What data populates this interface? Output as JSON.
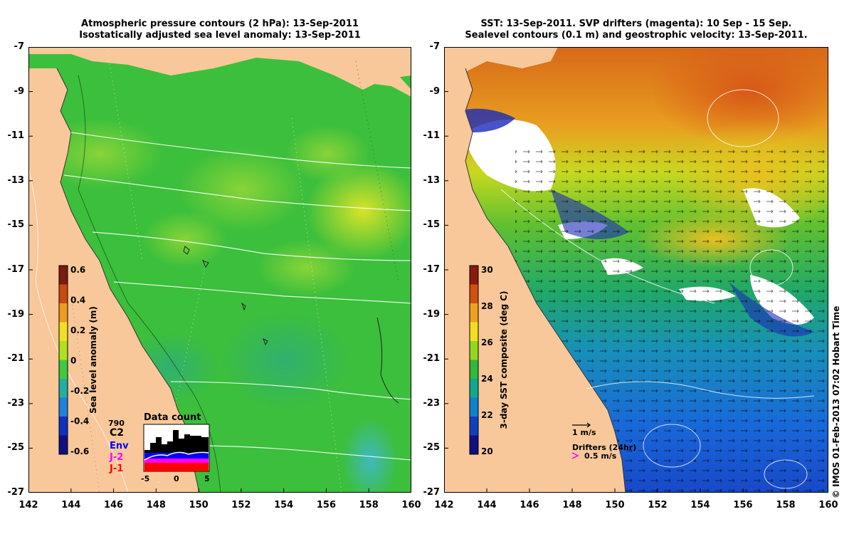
{
  "left_panel": {
    "title_line1": "Atmospheric pressure contours (2 hPa): 13-Sep-2011",
    "title_line2": "Isostatically adjusted sea level anomaly: 13-Sep-2011",
    "colorbar": {
      "label": "Sea level anomaly (m)",
      "ticks": [
        "0.6",
        "0.4",
        "0.2",
        "0",
        "-0.2",
        "-0.4",
        "-0.6"
      ],
      "colors": [
        "#7a1a10",
        "#c84a10",
        "#f09a20",
        "#f0e020",
        "#b0e020",
        "#40c840",
        "#20b0a0",
        "#2080e0",
        "#1030c0",
        "#101080"
      ]
    },
    "data_count": {
      "title": "Data count",
      "max_label": "790",
      "x_ticks": [
        "-5",
        "0",
        "5"
      ],
      "legend": [
        {
          "label": "C2",
          "color": "#000000"
        },
        {
          "label": "Env",
          "color": "#0000ff"
        },
        {
          "label": "J-2",
          "color": "#ff00ff"
        },
        {
          "label": "J-1",
          "color": "#ff0000"
        }
      ]
    }
  },
  "right_panel": {
    "title_line1": "SST: 13-Sep-2011. SVP drifters (magenta): 10 Sep - 15 Sep.",
    "title_line2": "Sealevel contours (0.1 m) and geostrophic velocity: 13-Sep-2011.",
    "colorbar": {
      "label": "3-day SST composite (deg C)",
      "ticks": [
        "30",
        "28",
        "26",
        "24",
        "22",
        "20"
      ],
      "colors": [
        "#8a1a10",
        "#d05010",
        "#f0a020",
        "#f0e020",
        "#90d820",
        "#30b840",
        "#10a890",
        "#1080d0",
        "#1040c0",
        "#101080"
      ]
    },
    "velocity_legend": "1 m/s",
    "drifters_legend": "Drifters (24hr)",
    "drifters_speed": "0.5 m/s"
  },
  "axes": {
    "y_ticks": [
      "-7",
      "-9",
      "-11",
      "-13",
      "-15",
      "-17",
      "-19",
      "-21",
      "-23",
      "-25",
      "-27"
    ],
    "x_ticks": [
      "142",
      "144",
      "146",
      "148",
      "150",
      "152",
      "154",
      "156",
      "158",
      "160"
    ]
  },
  "credit": "© IMOS 01-Feb-2013 07:02 Hobart Time",
  "colors": {
    "land": "#f8c89a",
    "sea_green": "#3cc23c",
    "sea_yellow": "#c8e030"
  }
}
